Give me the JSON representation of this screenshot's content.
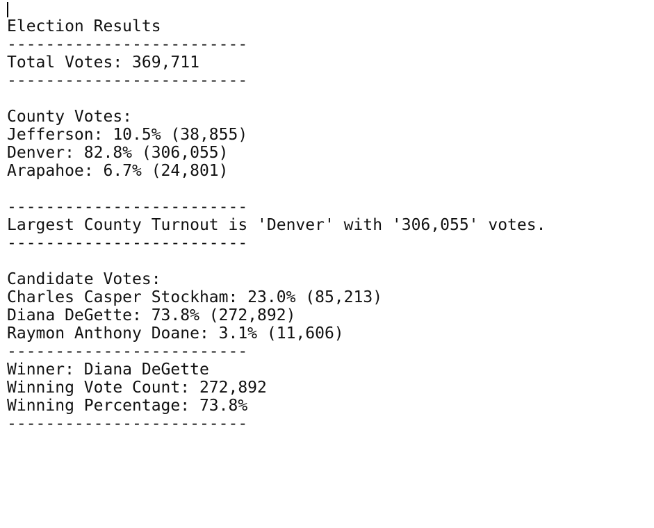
{
  "title": "Election Results",
  "separator": "-------------------------",
  "total_votes": "Total Votes: 369,711",
  "county_header": "County Votes:",
  "counties": [
    "Jefferson: 10.5% (38,855)",
    "Denver: 82.8% (306,055)",
    "Arapahoe: 6.7% (24,801)"
  ],
  "largest_county": "Largest County Turnout is 'Denver' with '306,055' votes.",
  "candidate_header": "Candidate Votes:",
  "candidates": [
    "Charles Casper Stockham: 23.0% (85,213)",
    "Diana DeGette: 73.8% (272,892)",
    "Raymon Anthony Doane: 3.1% (11,606)"
  ],
  "winner": "Winner: Diana DeGette",
  "winning_vote_count": "Winning Vote Count: 272,892",
  "winning_percentage": "Winning Percentage: 73.8%"
}
